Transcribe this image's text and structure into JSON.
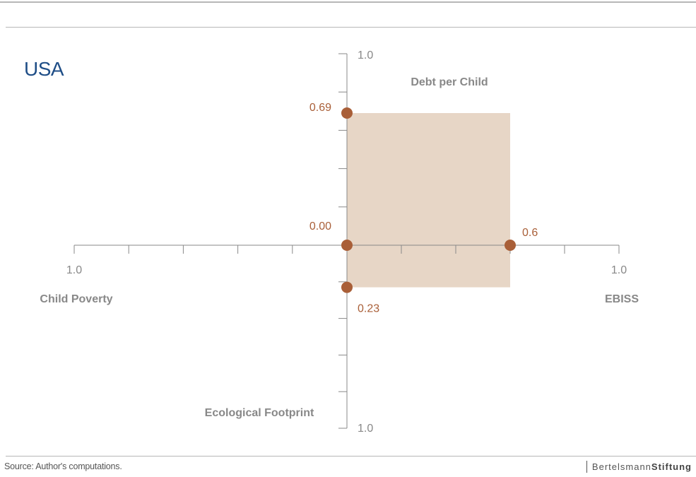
{
  "country": "USA",
  "source": "Source: Author's computations.",
  "logo": {
    "part1": "Bertelsmann",
    "part2": "Stiftung"
  },
  "chart_data": {
    "type": "radar",
    "axes": [
      {
        "name": "Debt per Child",
        "max_label": "1.0",
        "value": 0.69,
        "value_label": "0.69"
      },
      {
        "name": "EBISS",
        "max_label": "1.0",
        "value": 0.6,
        "value_label": "0.6"
      },
      {
        "name": "Ecological Footprint",
        "max_label": "1.0",
        "value": 0.23,
        "value_label": "0.23"
      },
      {
        "name": "Child Poverty",
        "max_label": "1.0",
        "value": 0.0,
        "value_label": "0.00"
      }
    ],
    "range": [
      0,
      1
    ],
    "ticks": 5,
    "colors": {
      "point": "#a95f38",
      "fill": "#e7d6c6",
      "axis": "#888888",
      "label": "#888888",
      "value": "#a95f38"
    }
  }
}
